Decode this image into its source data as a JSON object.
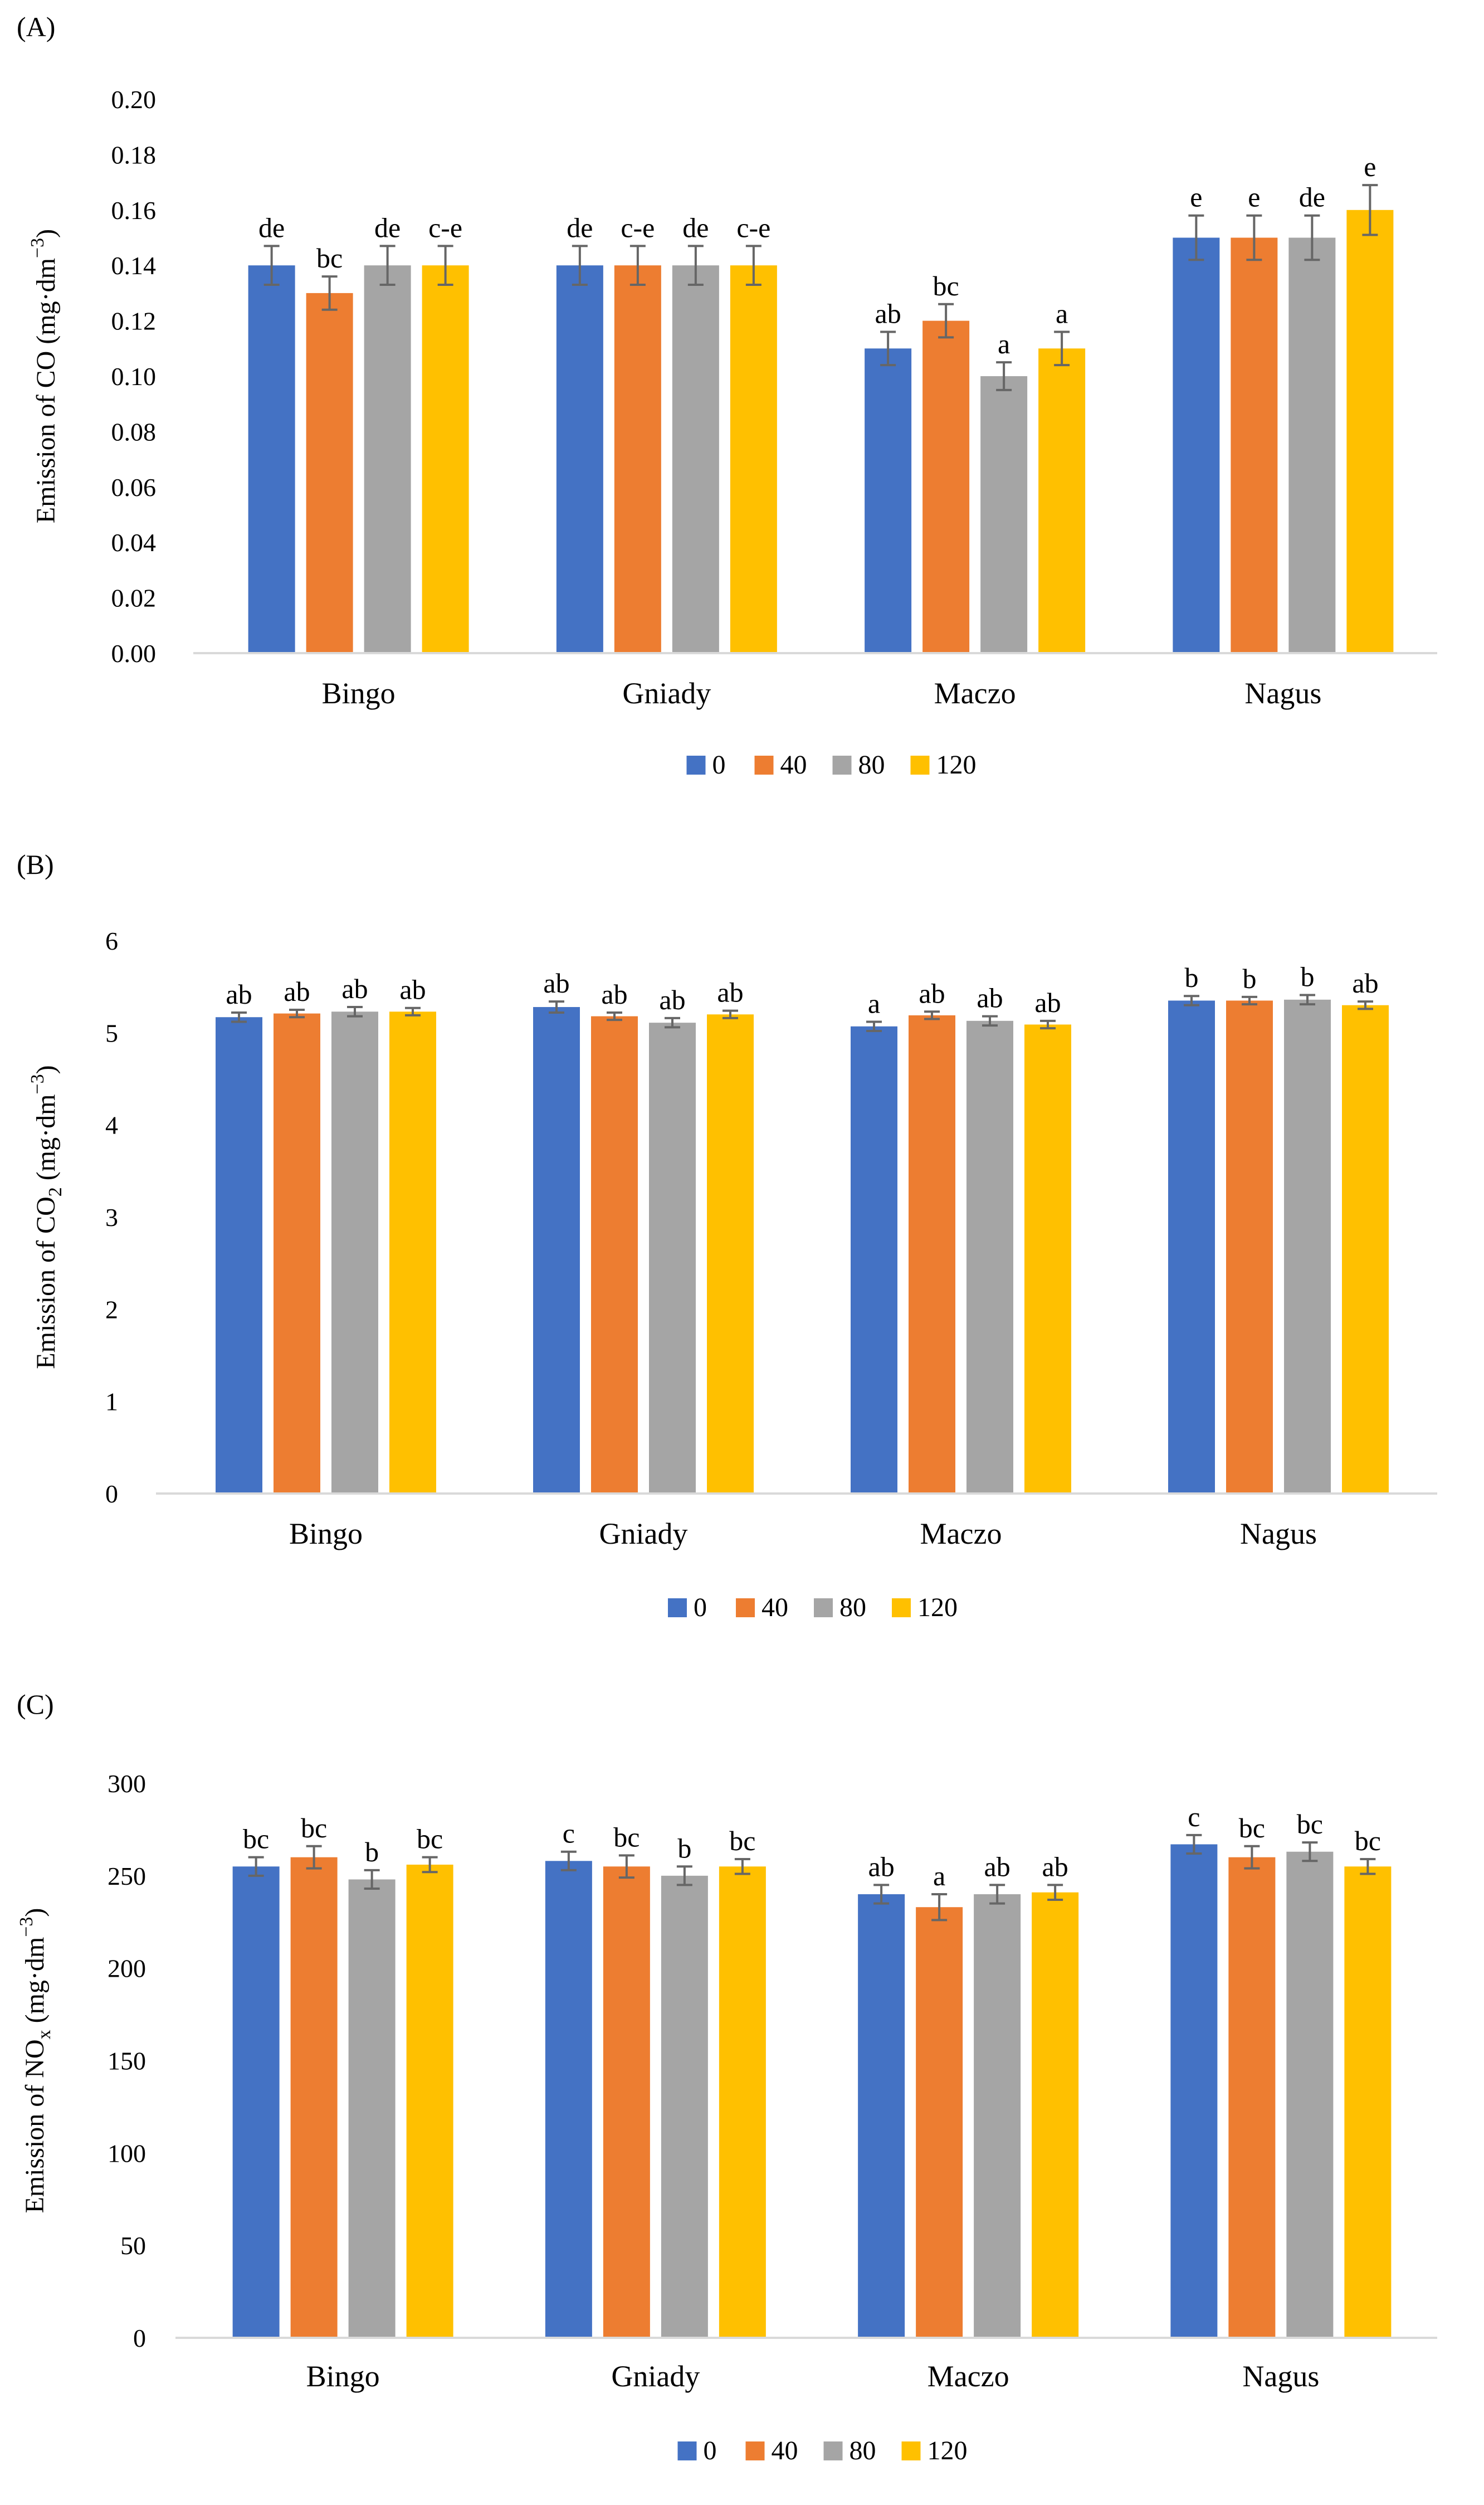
{
  "colors": {
    "axis": "#d9d9d9",
    "error_bar": "#666666",
    "text": "#000000"
  },
  "legend_series": [
    {
      "name": "0",
      "color": "#4472c4"
    },
    {
      "name": "40",
      "color": "#ed7d31"
    },
    {
      "name": "80",
      "color": "#a5a5a5"
    },
    {
      "name": "120",
      "color": "#ffc000"
    }
  ],
  "chart_data": [
    {
      "panel_label": "(A)",
      "type": "bar",
      "ylabel_prefix": "Emission of CO (mg·dm",
      "ylabel_sup": "−3",
      "ylabel_suffix": ")",
      "ylim": [
        0,
        0.2
      ],
      "yticks": [
        0.0,
        0.02,
        0.04,
        0.06,
        0.08,
        0.1,
        0.12,
        0.14,
        0.16,
        0.18,
        0.2
      ],
      "ytick_labels": [
        "0.00",
        "0.02",
        "0.04",
        "0.06",
        "0.08",
        "0.10",
        "0.12",
        "0.14",
        "0.16",
        "0.18",
        "0.20"
      ],
      "categories": [
        "Bingo",
        "Gniady",
        "Maczo",
        "Nagus"
      ],
      "series": [
        {
          "name": "0",
          "values": [
            0.14,
            0.14,
            0.11,
            0.15
          ],
          "errors": [
            0.007,
            0.007,
            0.006,
            0.008
          ],
          "labels": [
            "de",
            "de",
            "ab",
            "e"
          ]
        },
        {
          "name": "40",
          "values": [
            0.13,
            0.14,
            0.12,
            0.15
          ],
          "errors": [
            0.006,
            0.007,
            0.006,
            0.008
          ],
          "labels": [
            "bc",
            "c-e",
            "bc",
            "e"
          ]
        },
        {
          "name": "80",
          "values": [
            0.14,
            0.14,
            0.1,
            0.15
          ],
          "errors": [
            0.007,
            0.007,
            0.005,
            0.008
          ],
          "labels": [
            "de",
            "de",
            "a",
            "de"
          ]
        },
        {
          "name": "120",
          "values": [
            0.14,
            0.14,
            0.11,
            0.16
          ],
          "errors": [
            0.007,
            0.007,
            0.006,
            0.009
          ],
          "labels": [
            "c-e",
            "c-e",
            "a",
            "e"
          ]
        }
      ]
    },
    {
      "panel_label": "(B)",
      "type": "bar",
      "ylabel_prefix": "Emission of CO",
      "ylabel_sub": "2",
      "ylabel_mid": " (mg·dm",
      "ylabel_sup": "−3",
      "ylabel_suffix": ")",
      "ylim": [
        0,
        6
      ],
      "yticks": [
        0,
        1,
        2,
        3,
        4,
        5,
        6
      ],
      "ytick_labels": [
        "0",
        "1",
        "2",
        "3",
        "4",
        "5",
        "6"
      ],
      "categories": [
        "Bingo",
        "Gniady",
        "Maczo",
        "Nagus"
      ],
      "series": [
        {
          "name": "0",
          "values": [
            5.17,
            5.28,
            5.07,
            5.35
          ],
          "errors": [
            0.05,
            0.06,
            0.05,
            0.05
          ],
          "labels": [
            "ab",
            "ab",
            "a",
            "b"
          ]
        },
        {
          "name": "40",
          "values": [
            5.21,
            5.18,
            5.19,
            5.35
          ],
          "errors": [
            0.04,
            0.04,
            0.04,
            0.04
          ],
          "labels": [
            "ab",
            "ab",
            "ab",
            "b"
          ]
        },
        {
          "name": "80",
          "values": [
            5.23,
            5.11,
            5.13,
            5.36
          ],
          "errors": [
            0.05,
            0.05,
            0.05,
            0.05
          ],
          "labels": [
            "ab",
            "ab",
            "ab",
            "b"
          ]
        },
        {
          "name": "120",
          "values": [
            5.23,
            5.2,
            5.09,
            5.3
          ],
          "errors": [
            0.04,
            0.04,
            0.04,
            0.04
          ],
          "labels": [
            "ab",
            "ab",
            "ab",
            "ab"
          ]
        }
      ]
    },
    {
      "panel_label": "(C)",
      "type": "bar",
      "ylabel_prefix": "Emission of NO",
      "ylabel_sub": "x",
      "ylabel_mid": " (mg·dm",
      "ylabel_sup": "−3",
      "ylabel_suffix": ")",
      "ylim": [
        0,
        300
      ],
      "yticks": [
        0,
        50,
        100,
        150,
        200,
        250,
        300
      ],
      "ytick_labels": [
        "0",
        "50",
        "100",
        "150",
        "200",
        "250",
        "300"
      ],
      "categories": [
        "Bingo",
        "Gniady",
        "Maczo",
        "Nagus"
      ],
      "series": [
        {
          "name": "0",
          "values": [
            255,
            258,
            240,
            267
          ],
          "errors": [
            5,
            5,
            5,
            5
          ],
          "labels": [
            "bc",
            "c",
            "ab",
            "c"
          ]
        },
        {
          "name": "40",
          "values": [
            260,
            255,
            233,
            260
          ],
          "errors": [
            6,
            6,
            7,
            6
          ],
          "labels": [
            "bc",
            "bc",
            "a",
            "bc"
          ]
        },
        {
          "name": "80",
          "values": [
            248,
            250,
            240,
            263
          ],
          "errors": [
            5,
            5,
            5,
            5
          ],
          "labels": [
            "b",
            "b",
            "ab",
            "bc"
          ]
        },
        {
          "name": "120",
          "values": [
            256,
            255,
            241,
            255
          ],
          "errors": [
            4,
            4,
            4,
            4
          ],
          "labels": [
            "bc",
            "bc",
            "ab",
            "bc"
          ]
        }
      ]
    }
  ]
}
